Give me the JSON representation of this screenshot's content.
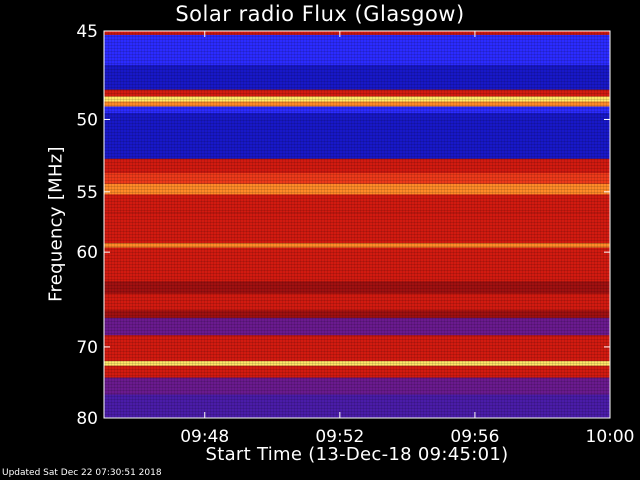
{
  "chart_data": {
    "type": "heatmap",
    "title": "Solar radio Flux (Glasgow)",
    "xlabel": "Start Time (13-Dec-18 09:45:01)",
    "ylabel": "Frequency [MHz]",
    "x_range": [
      "09:45:01",
      "10:00:00"
    ],
    "ylim": [
      45,
      80
    ],
    "y_inverted": true,
    "x_ticks": [
      {
        "label": "09:48",
        "time": "09:48"
      },
      {
        "label": "09:52",
        "time": "09:52"
      },
      {
        "label": "09:56",
        "time": "09:56"
      },
      {
        "label": "10:00",
        "time": "10:00"
      }
    ],
    "y_ticks": [
      45,
      50,
      55,
      60,
      70,
      80
    ],
    "frequency_bands": [
      {
        "from": 45.0,
        "to": 45.2,
        "level": "red"
      },
      {
        "from": 45.2,
        "to": 46.8,
        "level": "blue"
      },
      {
        "from": 46.8,
        "to": 48.2,
        "level": "dark-blue"
      },
      {
        "from": 48.2,
        "to": 48.6,
        "level": "red"
      },
      {
        "from": 48.6,
        "to": 48.9,
        "level": "yellow"
      },
      {
        "from": 48.9,
        "to": 49.2,
        "level": "orange"
      },
      {
        "from": 49.2,
        "to": 49.6,
        "level": "blue"
      },
      {
        "from": 49.6,
        "to": 52.6,
        "level": "dark-blue"
      },
      {
        "from": 52.6,
        "to": 53.6,
        "level": "red"
      },
      {
        "from": 53.6,
        "to": 54.4,
        "level": "light-red"
      },
      {
        "from": 54.4,
        "to": 55.2,
        "level": "orange"
      },
      {
        "from": 55.2,
        "to": 56.6,
        "level": "red"
      },
      {
        "from": 56.6,
        "to": 59.2,
        "level": "red"
      },
      {
        "from": 59.2,
        "to": 59.6,
        "level": "orange"
      },
      {
        "from": 59.6,
        "to": 62.8,
        "level": "red"
      },
      {
        "from": 62.8,
        "to": 64.0,
        "level": "dark-red"
      },
      {
        "from": 64.0,
        "to": 65.8,
        "level": "red"
      },
      {
        "from": 65.8,
        "to": 66.6,
        "level": "dark-red"
      },
      {
        "from": 66.6,
        "to": 68.6,
        "level": "purple"
      },
      {
        "from": 68.6,
        "to": 71.8,
        "level": "red"
      },
      {
        "from": 71.8,
        "to": 72.4,
        "level": "yellow"
      },
      {
        "from": 72.4,
        "to": 74.0,
        "level": "red"
      },
      {
        "from": 74.0,
        "to": 76.4,
        "level": "purple"
      },
      {
        "from": 76.4,
        "to": 80.0,
        "level": "blue-purple"
      }
    ],
    "colors": {
      "dark-blue": "#1818c8",
      "blue": "#2b2bff",
      "purple": "#6a1a8e",
      "blue-purple": "#4a1ca8",
      "dark-red": "#a01010",
      "red": "#d21a10",
      "light-red": "#ee3a1a",
      "orange": "#ff8a28",
      "yellow": "#ffe86a",
      "axis": "#ffffff",
      "background": "#000000"
    }
  },
  "footer": {
    "updated": "Updated Sat Dec 22 07:30:51 2018"
  }
}
